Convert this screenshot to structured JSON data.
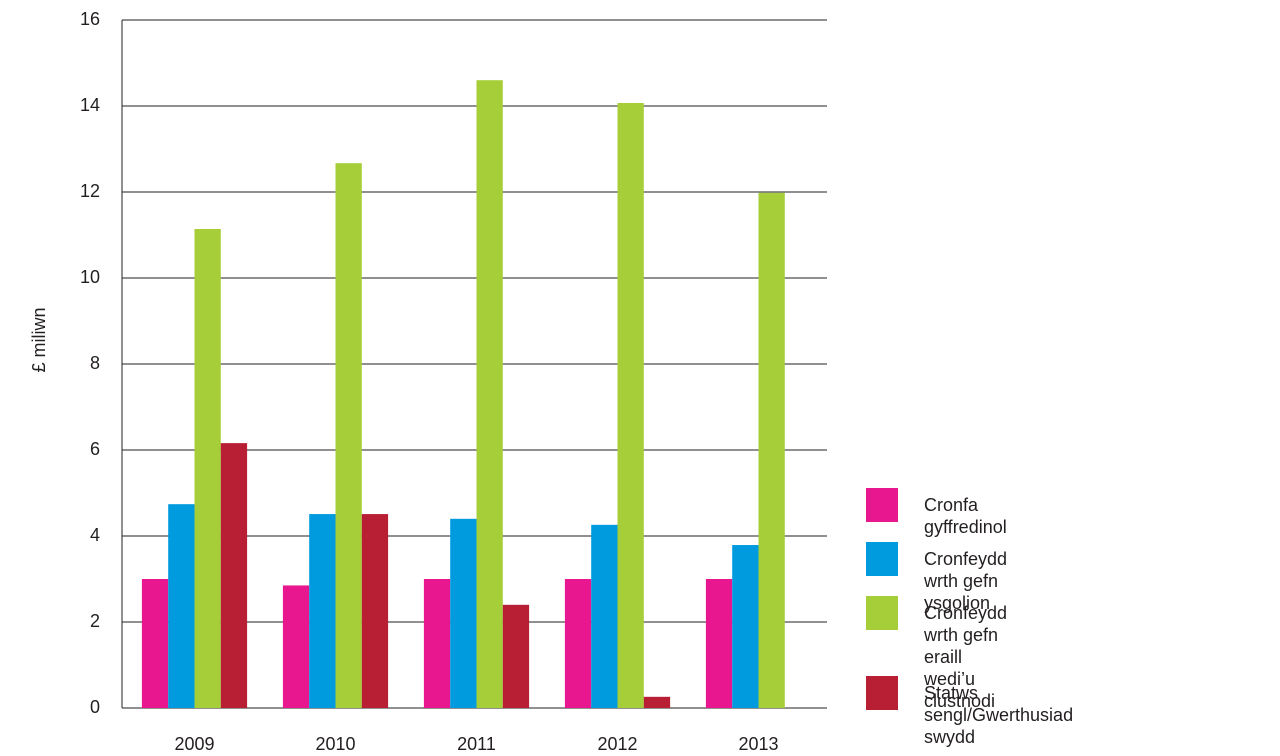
{
  "chart_data": {
    "type": "bar",
    "ylabel": "£ miliwn",
    "categories": [
      "2009",
      "2010",
      "2011",
      "2012",
      "2013"
    ],
    "series": [
      {
        "name": "Cronfa gyffredinol",
        "color": "#e8168f",
        "values": [
          3.0,
          2.85,
          3.0,
          3.0,
          3.0
        ]
      },
      {
        "name": "Cronfeydd wrth gefn ysgolion",
        "color": "#009bdf",
        "values": [
          4.74,
          4.51,
          4.4,
          4.26,
          3.79
        ]
      },
      {
        "name": "Cronfeydd wrth gefn eraill\nwedi’u clustnodi",
        "color": "#a6ce39",
        "values": [
          11.14,
          12.67,
          14.6,
          14.07,
          11.98
        ]
      },
      {
        "name": "Statws sengl/Gwerthusiad swydd",
        "color": "#b81f35",
        "values": [
          6.16,
          4.51,
          2.4,
          0.26,
          null
        ]
      }
    ],
    "ylim": [
      0,
      16
    ],
    "yticks": [
      0,
      2,
      4,
      6,
      8,
      10,
      12,
      14,
      16
    ],
    "grid": true
  }
}
